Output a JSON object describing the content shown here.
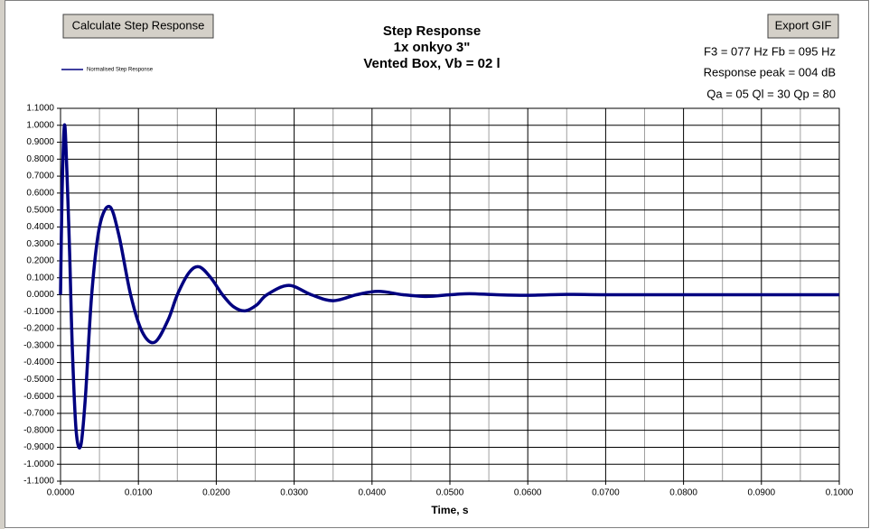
{
  "chart_data": {
    "type": "line",
    "title": [
      "Step Response",
      "1x onkyo 3\"",
      "Vented Box, Vb = 02 l"
    ],
    "buttons": [
      "Calculate Step Response",
      "Export GIF"
    ],
    "annotations": [
      "F3 = 077 Hz  Fb = 095 Hz",
      "Response peak = 004 dB",
      "Qa = 05  Ql = 30  Qp = 80"
    ],
    "xlabel": "Time, s",
    "x": [
      0,
      0.0002,
      0.0005,
      0.0008,
      0.0012,
      0.0015,
      0.002,
      0.0026,
      0.0032,
      0.004,
      0.005,
      0.0063,
      0.0075,
      0.009,
      0.0105,
      0.0121,
      0.0138,
      0.015,
      0.0165,
      0.0178,
      0.0193,
      0.0208,
      0.0222,
      0.0237,
      0.0252,
      0.0265,
      0.0293,
      0.0322,
      0.035,
      0.038,
      0.0408,
      0.044,
      0.047,
      0.05,
      0.0525,
      0.056,
      0.06,
      0.065,
      0.07,
      0.08,
      0.09,
      0.1
    ],
    "series": [
      {
        "name": "Normalised Step Response",
        "color": "#000080",
        "values": [
          0,
          0.6,
          1.0,
          0.75,
          0.2,
          -0.3,
          -0.8,
          -0.89,
          -0.6,
          0.0,
          0.4,
          0.52,
          0.35,
          0.0,
          -0.22,
          -0.28,
          -0.15,
          0.0,
          0.13,
          0.165,
          0.1,
          0.0,
          -0.07,
          -0.095,
          -0.06,
          0.0,
          0.055,
          0.0,
          -0.035,
          0.0,
          0.02,
          0.0,
          -0.01,
          0.0,
          0.006,
          0.0,
          -0.003,
          0.002,
          0,
          0,
          0,
          0
        ]
      }
    ],
    "xlim": [
      0,
      0.1
    ],
    "xticks": [
      {
        "value": 0,
        "label": "0.0000"
      },
      {
        "value": 0.01,
        "label": "0.0100"
      },
      {
        "value": 0.02,
        "label": "0.0200"
      },
      {
        "value": 0.03,
        "label": "0.0300"
      },
      {
        "value": 0.04,
        "label": "0.0400"
      },
      {
        "value": 0.05,
        "label": "0.0500"
      },
      {
        "value": 0.06,
        "label": "0.0600"
      },
      {
        "value": 0.07,
        "label": "0.0700"
      },
      {
        "value": 0.08,
        "label": "0.0800"
      },
      {
        "value": 0.09,
        "label": "0.0900"
      },
      {
        "value": 0.1,
        "label": "0.1000"
      }
    ],
    "xminorticks": [
      0.005,
      0.015,
      0.025,
      0.035,
      0.045,
      0.055,
      0.065,
      0.075,
      0.085,
      0.095
    ],
    "ylim": [
      -1.1,
      1.1
    ],
    "yticks": [
      {
        "value": -1.1,
        "label": "-1.1000"
      },
      {
        "value": -1.0,
        "label": "-1.0000"
      },
      {
        "value": -0.9,
        "label": "-0.9000"
      },
      {
        "value": -0.8,
        "label": "-0.8000"
      },
      {
        "value": -0.7,
        "label": "-0.7000"
      },
      {
        "value": -0.6,
        "label": "-0.6000"
      },
      {
        "value": -0.5,
        "label": "-0.5000"
      },
      {
        "value": -0.4,
        "label": "-0.4000"
      },
      {
        "value": -0.3,
        "label": "-0.3000"
      },
      {
        "value": -0.2,
        "label": "-0.2000"
      },
      {
        "value": -0.1,
        "label": "-0.1000"
      },
      {
        "value": 0,
        "label": "0.0000"
      },
      {
        "value": 0.1,
        "label": "0.1000"
      },
      {
        "value": 0.2,
        "label": "0.2000"
      },
      {
        "value": 0.3,
        "label": "0.3000"
      },
      {
        "value": 0.4,
        "label": "0.4000"
      },
      {
        "value": 0.5,
        "label": "0.5000"
      },
      {
        "value": 0.6,
        "label": "0.6000"
      },
      {
        "value": 0.7,
        "label": "0.7000"
      },
      {
        "value": 0.8,
        "label": "0.8000"
      },
      {
        "value": 0.9,
        "label": "0.9000"
      },
      {
        "value": 1.0,
        "label": "1.0000"
      },
      {
        "value": 1.1,
        "label": "1.1000"
      }
    ],
    "grid": true
  }
}
